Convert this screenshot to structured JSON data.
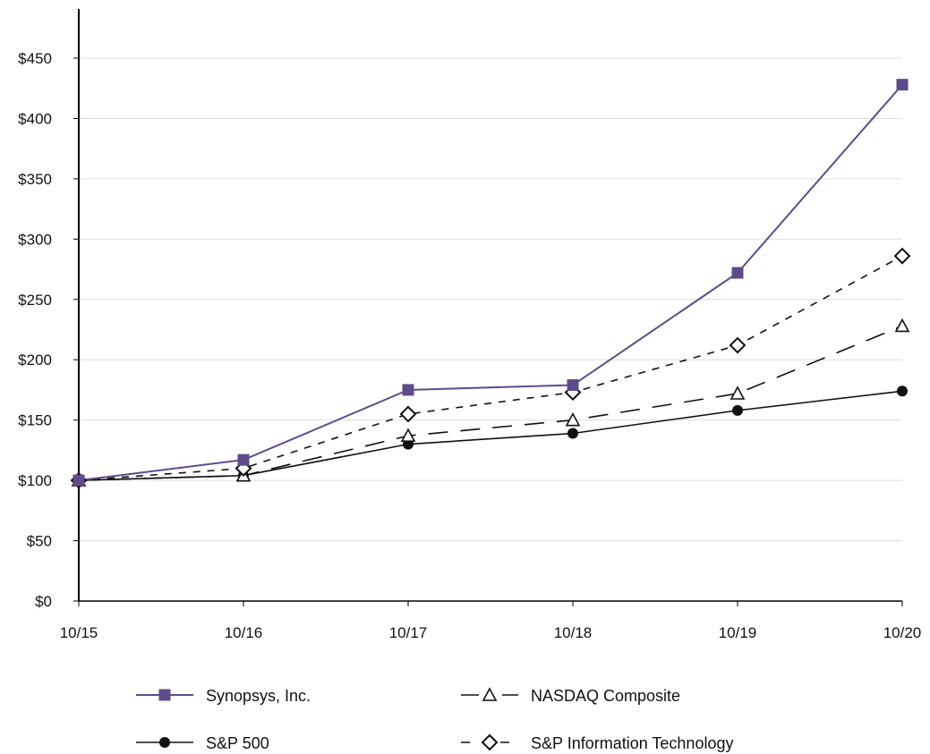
{
  "chart_data": {
    "type": "line",
    "title": "",
    "xlabel": "",
    "ylabel": "",
    "categories": [
      "10/15",
      "10/16",
      "10/17",
      "10/18",
      "10/19",
      "10/20"
    ],
    "ylim": [
      0,
      450
    ],
    "y_ticks": [
      {
        "value": 0,
        "label": "$0"
      },
      {
        "value": 50,
        "label": "$50"
      },
      {
        "value": 100,
        "label": "$100"
      },
      {
        "value": 150,
        "label": "$150"
      },
      {
        "value": 200,
        "label": "$200"
      },
      {
        "value": 250,
        "label": "$250"
      },
      {
        "value": 300,
        "label": "$300"
      },
      {
        "value": 350,
        "label": "$350"
      },
      {
        "value": 400,
        "label": "$400"
      },
      {
        "value": 450,
        "label": "$450"
      }
    ],
    "grid": true,
    "legend_position": "bottom",
    "series": [
      {
        "name": "Synopsys, Inc.",
        "values": [
          100,
          117,
          175,
          179,
          272,
          428
        ],
        "color": "#5e4b8b",
        "line": "solid",
        "marker": "square"
      },
      {
        "name": "NASDAQ Composite",
        "values": [
          100,
          104,
          137,
          150,
          172,
          228
        ],
        "color": "#111111",
        "line": "longdash",
        "marker": "triangle-open"
      },
      {
        "name": "S&P 500",
        "values": [
          100,
          104,
          130,
          139,
          158,
          174
        ],
        "color": "#111111",
        "line": "solid",
        "marker": "circle"
      },
      {
        "name": "S&P Information Technology",
        "values": [
          100,
          110,
          155,
          173,
          212,
          286
        ],
        "color": "#111111",
        "line": "dash",
        "marker": "diamond-open"
      }
    ]
  }
}
